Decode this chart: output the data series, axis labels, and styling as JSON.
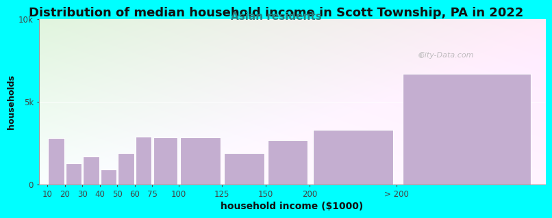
{
  "title": "Distribution of median household income in Scott Township, PA in 2022",
  "subtitle": "Asian residents",
  "xlabel": "household income ($1000)",
  "ylabel": "households",
  "background_color": "#00FFFF",
  "bar_color": "#c4aed0",
  "bar_edge_color": "#ffffff",
  "categories": [
    "10",
    "20",
    "30",
    "40",
    "50",
    "60",
    "75",
    "100",
    "125",
    "150",
    "200",
    "> 200"
  ],
  "left_edges": [
    0,
    10,
    20,
    30,
    40,
    50,
    60,
    75,
    100,
    125,
    150,
    200
  ],
  "widths": [
    10,
    10,
    10,
    10,
    10,
    10,
    15,
    25,
    25,
    25,
    50,
    80
  ],
  "values": [
    2800,
    1300,
    1700,
    900,
    1900,
    2900,
    2850,
    2850,
    1900,
    2700,
    3300,
    6700
  ],
  "ylim": [
    0,
    10000
  ],
  "ytick_labels": [
    "0",
    "5k",
    "10k"
  ],
  "ytick_vals": [
    0,
    5000,
    10000
  ],
  "watermark": "  City-Data.com",
  "title_fontsize": 13,
  "subtitle_fontsize": 11,
  "subtitle_color": "#2a8080",
  "xlabel_fontsize": 10,
  "ylabel_fontsize": 9,
  "tick_fontsize": 8.5
}
